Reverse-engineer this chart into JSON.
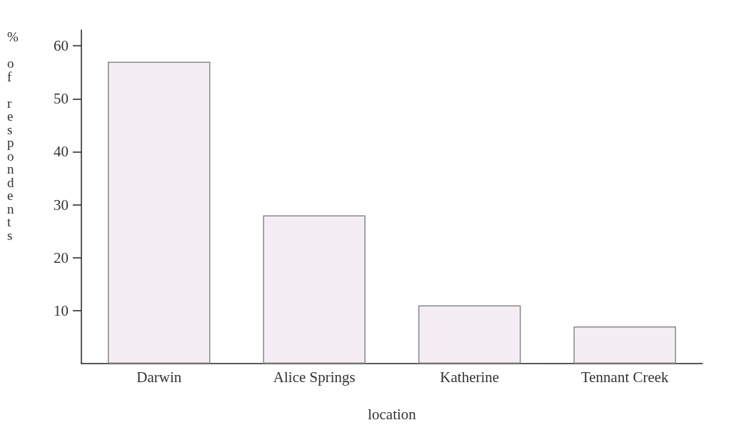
{
  "chart_data": {
    "type": "bar",
    "xlabel": "location",
    "ylabel": "% of respondents",
    "categories": [
      "Darwin",
      "Alice Springs",
      "Katherine",
      "Tennant Creek"
    ],
    "values": [
      57,
      28,
      11,
      7
    ],
    "color": "#f4eef4",
    "ylim": [
      0,
      63
    ],
    "yticks": [
      10,
      20,
      30,
      40,
      50,
      60
    ],
    "grid": false
  }
}
